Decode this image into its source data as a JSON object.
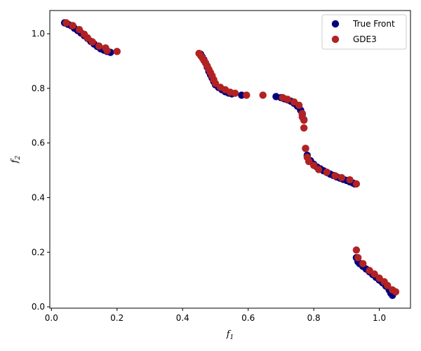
{
  "chart_data": {
    "type": "scatter",
    "title": "",
    "xlabel": "f",
    "xlabel_sub": "1",
    "ylabel": "f",
    "ylabel_sub": "2",
    "xlim": [
      -0.005,
      1.095
    ],
    "ylim": [
      -0.005,
      1.085
    ],
    "xticks": [
      0.0,
      0.2,
      0.4,
      0.6,
      0.8,
      1.0
    ],
    "yticks": [
      0.0,
      0.2,
      0.4,
      0.6,
      0.8,
      1.0
    ],
    "xtick_labels": [
      "0.0",
      "0.2",
      "0.4",
      "0.6",
      "0.8",
      "1.0"
    ],
    "ytick_labels": [
      "0.0",
      "0.2",
      "0.4",
      "0.6",
      "0.8",
      "1.0"
    ],
    "grid": false,
    "legend_position": "top-right",
    "series": [
      {
        "name": "True Front",
        "color": "#00007f",
        "points": [
          [
            0.04,
            1.04
          ],
          [
            0.05,
            1.035
          ],
          [
            0.06,
            1.03
          ],
          [
            0.07,
            1.02
          ],
          [
            0.08,
            1.012
          ],
          [
            0.09,
            1.003
          ],
          [
            0.1,
            0.993
          ],
          [
            0.11,
            0.983
          ],
          [
            0.12,
            0.972
          ],
          [
            0.13,
            0.962
          ],
          [
            0.14,
            0.953
          ],
          [
            0.15,
            0.945
          ],
          [
            0.16,
            0.94
          ],
          [
            0.17,
            0.935
          ],
          [
            0.18,
            0.932
          ],
          [
            0.455,
            0.925
          ],
          [
            0.46,
            0.915
          ],
          [
            0.465,
            0.905
          ],
          [
            0.47,
            0.893
          ],
          [
            0.475,
            0.878
          ],
          [
            0.48,
            0.862
          ],
          [
            0.485,
            0.85
          ],
          [
            0.49,
            0.838
          ],
          [
            0.495,
            0.825
          ],
          [
            0.5,
            0.813
          ],
          [
            0.51,
            0.803
          ],
          [
            0.52,
            0.795
          ],
          [
            0.53,
            0.788
          ],
          [
            0.54,
            0.783
          ],
          [
            0.55,
            0.78
          ],
          [
            0.58,
            0.775
          ],
          [
            0.685,
            0.77
          ],
          [
            0.7,
            0.766
          ],
          [
            0.71,
            0.762
          ],
          [
            0.72,
            0.758
          ],
          [
            0.73,
            0.753
          ],
          [
            0.74,
            0.745
          ],
          [
            0.75,
            0.735
          ],
          [
            0.76,
            0.72
          ],
          [
            0.765,
            0.705
          ],
          [
            0.77,
            0.685
          ],
          [
            0.775,
            0.58
          ],
          [
            0.78,
            0.555
          ],
          [
            0.79,
            0.535
          ],
          [
            0.8,
            0.522
          ],
          [
            0.81,
            0.512
          ],
          [
            0.82,
            0.505
          ],
          [
            0.83,
            0.498
          ],
          [
            0.84,
            0.492
          ],
          [
            0.85,
            0.486
          ],
          [
            0.86,
            0.481
          ],
          [
            0.87,
            0.476
          ],
          [
            0.88,
            0.471
          ],
          [
            0.89,
            0.467
          ],
          [
            0.9,
            0.463
          ],
          [
            0.91,
            0.458
          ],
          [
            0.92,
            0.453
          ],
          [
            0.925,
            0.45
          ],
          [
            0.93,
            0.18
          ],
          [
            0.935,
            0.165
          ],
          [
            0.94,
            0.158
          ],
          [
            0.95,
            0.148
          ],
          [
            0.96,
            0.138
          ],
          [
            0.97,
            0.128
          ],
          [
            0.98,
            0.118
          ],
          [
            0.99,
            0.108
          ],
          [
            1.0,
            0.098
          ],
          [
            1.01,
            0.088
          ],
          [
            1.02,
            0.076
          ],
          [
            1.03,
            0.062
          ],
          [
            1.035,
            0.05
          ],
          [
            1.04,
            0.042
          ]
        ]
      },
      {
        "name": "GDE3",
        "color": "#b22222",
        "points": [
          [
            0.045,
            1.04
          ],
          [
            0.065,
            1.03
          ],
          [
            0.085,
            1.015
          ],
          [
            0.1,
            0.998
          ],
          [
            0.11,
            0.985
          ],
          [
            0.125,
            0.97
          ],
          [
            0.145,
            0.955
          ],
          [
            0.165,
            0.948
          ],
          [
            0.17,
            0.938
          ],
          [
            0.2,
            0.935
          ],
          [
            0.45,
            0.928
          ],
          [
            0.455,
            0.92
          ],
          [
            0.46,
            0.912
          ],
          [
            0.465,
            0.902
          ],
          [
            0.47,
            0.893
          ],
          [
            0.475,
            0.882
          ],
          [
            0.48,
            0.87
          ],
          [
            0.485,
            0.858
          ],
          [
            0.49,
            0.846
          ],
          [
            0.495,
            0.832
          ],
          [
            0.5,
            0.818
          ],
          [
            0.515,
            0.804
          ],
          [
            0.53,
            0.795
          ],
          [
            0.545,
            0.786
          ],
          [
            0.56,
            0.782
          ],
          [
            0.595,
            0.775
          ],
          [
            0.645,
            0.775
          ],
          [
            0.705,
            0.766
          ],
          [
            0.72,
            0.76
          ],
          [
            0.74,
            0.75
          ],
          [
            0.755,
            0.738
          ],
          [
            0.765,
            0.708
          ],
          [
            0.765,
            0.695
          ],
          [
            0.77,
            0.683
          ],
          [
            0.77,
            0.655
          ],
          [
            0.775,
            0.58
          ],
          [
            0.78,
            0.548
          ],
          [
            0.785,
            0.532
          ],
          [
            0.8,
            0.518
          ],
          [
            0.815,
            0.503
          ],
          [
            0.84,
            0.493
          ],
          [
            0.865,
            0.48
          ],
          [
            0.885,
            0.473
          ],
          [
            0.91,
            0.465
          ],
          [
            0.93,
            0.45
          ],
          [
            0.93,
            0.208
          ],
          [
            0.935,
            0.18
          ],
          [
            0.95,
            0.158
          ],
          [
            0.97,
            0.133
          ],
          [
            0.985,
            0.12
          ],
          [
            1.0,
            0.105
          ],
          [
            1.015,
            0.092
          ],
          [
            1.025,
            0.078
          ],
          [
            1.04,
            0.062
          ],
          [
            1.05,
            0.055
          ]
        ]
      }
    ]
  }
}
